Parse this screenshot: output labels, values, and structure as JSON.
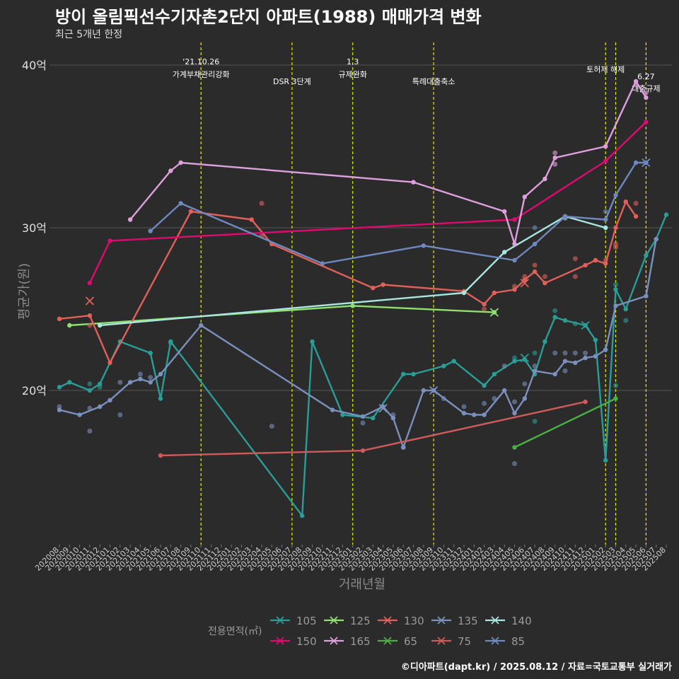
{
  "title": "방이 올림픽선수기자촌2단지 아파트(1988) 매매가격 변화",
  "subtitle": "최근 5개년 한정",
  "caption": "©디아파트(dapt.kr) / 2025.08.12 / 자료=국토교통부 실거래가",
  "chart_data": {
    "type": "line",
    "xlabel": "거래년월",
    "ylabel": "평균가(원)",
    "x_months": [
      "202008",
      "202009",
      "202010",
      "202011",
      "202012",
      "202101",
      "202102",
      "202103",
      "202104",
      "202105",
      "202106",
      "202107",
      "202108",
      "202109",
      "202110",
      "202111",
      "202112",
      "202201",
      "202202",
      "202203",
      "202204",
      "202205",
      "202206",
      "202207",
      "202208",
      "202209",
      "202210",
      "202211",
      "202212",
      "202301",
      "202302",
      "202303",
      "202304",
      "202305",
      "202306",
      "202307",
      "202308",
      "202309",
      "202310",
      "202311",
      "202312",
      "202401",
      "202402",
      "202403",
      "202404",
      "202405",
      "202406",
      "202407",
      "202408",
      "202409",
      "202410",
      "202411",
      "202412",
      "202501",
      "202502",
      "202503",
      "202504",
      "202505",
      "202506",
      "202507",
      "202508"
    ],
    "yticks": [
      {
        "value": 20,
        "label": "20억"
      },
      {
        "value": 30,
        "label": "30억"
      },
      {
        "value": 40,
        "label": "40억"
      }
    ],
    "ylim": [
      11,
      41.5
    ],
    "events": [
      {
        "month": "202110",
        "lines": [
          "'21.10.26",
          "가계부채관리강화"
        ]
      },
      {
        "month": "202207",
        "lines": [
          "DSR 3단계"
        ]
      },
      {
        "month": "202301",
        "lines": [
          "1.3",
          "규제완화"
        ]
      },
      {
        "month": "202309",
        "lines": [
          "특례대출축소"
        ]
      },
      {
        "month": "202502",
        "lines": [
          "토허제 해제"
        ]
      },
      {
        "month": "202503",
        "lines": []
      },
      {
        "month": "202506",
        "lines": [
          "6.27",
          "대출규제"
        ]
      }
    ],
    "legend_title": "전용면적(㎡)",
    "series": [
      {
        "name": "105",
        "color": "#2a9d96",
        "line": [
          [
            "202008",
            20.2
          ],
          [
            "202009",
            20.5
          ],
          [
            "202011",
            20.0
          ],
          [
            "202012",
            20.4
          ],
          [
            "202102",
            23.0
          ],
          [
            "202105",
            22.3
          ],
          [
            "202106",
            19.5
          ],
          [
            "202107",
            23.0
          ],
          [
            "202208",
            12.3
          ],
          [
            "202209",
            23.0
          ],
          [
            "202212",
            18.5
          ],
          [
            "202303",
            18.3
          ],
          [
            "202306",
            21.0
          ],
          [
            "202307",
            21.0
          ],
          [
            "202310",
            21.5
          ],
          [
            "202311",
            21.8
          ],
          [
            "202402",
            20.3
          ],
          [
            "202403",
            21.0
          ],
          [
            "202405",
            21.8
          ],
          [
            "202406",
            21.9
          ],
          [
            "202407",
            21.0
          ],
          [
            "202408",
            23.0
          ],
          [
            "202409",
            24.5
          ],
          [
            "202410",
            24.3
          ],
          [
            "202412",
            24.0
          ],
          [
            "202501",
            23.1
          ],
          [
            "202502",
            15.7
          ],
          [
            "202503",
            26.2
          ],
          [
            "202504",
            25.0
          ],
          [
            "202506",
            28.3
          ],
          [
            "202507",
            29.3
          ],
          [
            "202508",
            30.8
          ]
        ],
        "points": [
          [
            "202011",
            20.4
          ],
          [
            "202012",
            20.2
          ],
          [
            "202107",
            22.9
          ],
          [
            "202405",
            22.0
          ],
          [
            "202407",
            22.3
          ],
          [
            "202407",
            18.1
          ],
          [
            "202409",
            24.9
          ],
          [
            "202411",
            24.1
          ],
          [
            "202503",
            20.3
          ],
          [
            "202503",
            26.5
          ],
          [
            "202504",
            24.3
          ]
        ],
        "x_markers": [
          [
            "202406",
            22.0
          ],
          [
            "202412",
            24.0
          ]
        ]
      },
      {
        "name": "125",
        "color": "#90e070",
        "line": [
          [
            "202009",
            24.0
          ],
          [
            "202301",
            25.2
          ],
          [
            "202403",
            24.8
          ]
        ],
        "points": [],
        "x_markers": [
          [
            "202403",
            24.8
          ]
        ]
      },
      {
        "name": "130",
        "color": "#e0605a",
        "line": [
          [
            "202008",
            24.4
          ],
          [
            "202011",
            24.6
          ],
          [
            "202101",
            21.7
          ],
          [
            "202109",
            31.0
          ],
          [
            "202203",
            30.5
          ],
          [
            "202205",
            29.0
          ],
          [
            "202303",
            26.3
          ],
          [
            "202304",
            26.5
          ],
          [
            "202312",
            26.1
          ],
          [
            "202402",
            25.3
          ],
          [
            "202403",
            26.0
          ],
          [
            "202405",
            26.2
          ],
          [
            "202406",
            26.8
          ],
          [
            "202407",
            27.3
          ],
          [
            "202408",
            26.6
          ],
          [
            "202412",
            27.7
          ],
          [
            "202501",
            28.0
          ],
          [
            "202502",
            27.8
          ],
          [
            "202503",
            30.0
          ],
          [
            "202504",
            31.6
          ],
          [
            "202505",
            30.7
          ]
        ],
        "points": [
          [
            "202011",
            24.0
          ],
          [
            "202204",
            31.5
          ],
          [
            "202204",
            29.5
          ],
          [
            "202402",
            25.0
          ],
          [
            "202405",
            26.4
          ],
          [
            "202406",
            27.0
          ],
          [
            "202407",
            27.7
          ],
          [
            "202408",
            27.0
          ],
          [
            "202411",
            28.1
          ],
          [
            "202411",
            27.0
          ],
          [
            "202502",
            28.0
          ],
          [
            "202503",
            29.0
          ],
          [
            "202503",
            28.8
          ],
          [
            "202505",
            31.5
          ]
        ],
        "x_markers": [
          [
            "202011",
            25.5
          ],
          [
            "202406",
            26.6
          ]
        ]
      },
      {
        "name": "135",
        "color": "#7b90bd",
        "line": [
          [
            "202008",
            18.8
          ],
          [
            "202010",
            18.5
          ],
          [
            "202012",
            19.0
          ],
          [
            "202101",
            19.4
          ],
          [
            "202103",
            20.5
          ],
          [
            "202104",
            20.7
          ],
          [
            "202105",
            20.5
          ],
          [
            "202106",
            21.0
          ],
          [
            "202110",
            24.0
          ],
          [
            "202211",
            18.8
          ],
          [
            "202302",
            18.4
          ],
          [
            "202304",
            19.0
          ],
          [
            "202305",
            18.3
          ],
          [
            "202306",
            16.5
          ],
          [
            "202308",
            20.0
          ],
          [
            "202309",
            20.0
          ],
          [
            "202312",
            18.6
          ],
          [
            "202401",
            18.5
          ],
          [
            "202402",
            18.5
          ],
          [
            "202404",
            20.0
          ],
          [
            "202405",
            18.6
          ],
          [
            "202406",
            19.5
          ],
          [
            "202407",
            21.2
          ],
          [
            "202409",
            21.0
          ],
          [
            "202410",
            21.8
          ],
          [
            "202411",
            21.7
          ],
          [
            "202412",
            22.0
          ],
          [
            "202501",
            22.1
          ],
          [
            "202502",
            22.5
          ],
          [
            "202503",
            25.2
          ],
          [
            "202506",
            25.8
          ],
          [
            "202507",
            29.3
          ]
        ],
        "points": [
          [
            "202008",
            19.0
          ],
          [
            "202011",
            18.9
          ],
          [
            "202011",
            17.5
          ],
          [
            "202102",
            20.5
          ],
          [
            "202102",
            18.5
          ],
          [
            "202104",
            21.0
          ],
          [
            "202105",
            20.8
          ],
          [
            "202205",
            17.8
          ],
          [
            "202302",
            18.0
          ],
          [
            "202305",
            18.5
          ],
          [
            "202306",
            16.5
          ],
          [
            "202310",
            19.5
          ],
          [
            "202312",
            19.0
          ],
          [
            "202402",
            19.2
          ],
          [
            "202403",
            19.5
          ],
          [
            "202404",
            21.5
          ],
          [
            "202405",
            19.3
          ],
          [
            "202405",
            15.5
          ],
          [
            "202406",
            20.4
          ],
          [
            "202407",
            21.5
          ],
          [
            "202409",
            22.3
          ],
          [
            "202410",
            22.3
          ],
          [
            "202410",
            21.2
          ],
          [
            "202411",
            22.3
          ],
          [
            "202412",
            22.3
          ]
        ],
        "x_markers": [
          [
            "202304",
            18.9
          ],
          [
            "202309",
            20.0
          ]
        ]
      },
      {
        "name": "140",
        "color": "#a8e6e0",
        "line": [
          [
            "202012",
            24.0
          ],
          [
            "202312",
            26.0
          ],
          [
            "202404",
            28.5
          ],
          [
            "202410",
            30.7
          ],
          [
            "202502",
            30.0
          ]
        ],
        "points": [
          [
            "202410",
            30.6
          ]
        ],
        "x_markers": []
      },
      {
        "name": "150",
        "color": "#e00a6e",
        "line": [
          [
            "202011",
            26.6
          ],
          [
            "202101",
            29.2
          ],
          [
            "202405",
            30.5
          ],
          [
            "202502",
            34.1
          ],
          [
            "202506",
            36.5
          ]
        ],
        "points": [],
        "x_markers": []
      },
      {
        "name": "165",
        "color": "#dda0dd",
        "line": [
          [
            "202103",
            30.5
          ],
          [
            "202107",
            33.5
          ],
          [
            "202108",
            34.0
          ],
          [
            "202307",
            32.8
          ],
          [
            "202404",
            31.0
          ],
          [
            "202405",
            29.0
          ],
          [
            "202406",
            31.9
          ],
          [
            "202408",
            33.0
          ],
          [
            "202409",
            34.3
          ],
          [
            "202502",
            35.0
          ],
          [
            "202505",
            39.0
          ],
          [
            "202506",
            38.0
          ]
        ],
        "points": [
          [
            "202409",
            34.6
          ],
          [
            "202409",
            33.9
          ],
          [
            "202505",
            38.8
          ],
          [
            "202506",
            38.3
          ]
        ],
        "x_markers": []
      },
      {
        "name": "65",
        "color": "#49b043",
        "line": [
          [
            "202405",
            16.5
          ],
          [
            "202503",
            19.5
          ]
        ],
        "points": [],
        "x_markers": []
      },
      {
        "name": "75",
        "color": "#cf5a5a",
        "line": [
          [
            "202106",
            16.0
          ],
          [
            "202302",
            16.3
          ],
          [
            "202412",
            19.3
          ]
        ],
        "points": [],
        "x_markers": []
      },
      {
        "name": "85",
        "color": "#6e88c0",
        "line": [
          [
            "202105",
            29.8
          ],
          [
            "202108",
            31.5
          ],
          [
            "202210",
            27.8
          ],
          [
            "202308",
            28.9
          ],
          [
            "202405",
            28.0
          ],
          [
            "202407",
            29.0
          ],
          [
            "202410",
            30.7
          ],
          [
            "202502",
            30.5
          ],
          [
            "202503",
            32.0
          ],
          [
            "202505",
            34.0
          ],
          [
            "202506",
            34.0
          ]
        ],
        "points": [
          [
            "202407",
            30.0
          ],
          [
            "202502",
            31.0
          ]
        ],
        "x_markers": [
          [
            "202506",
            34.0
          ]
        ]
      }
    ]
  }
}
